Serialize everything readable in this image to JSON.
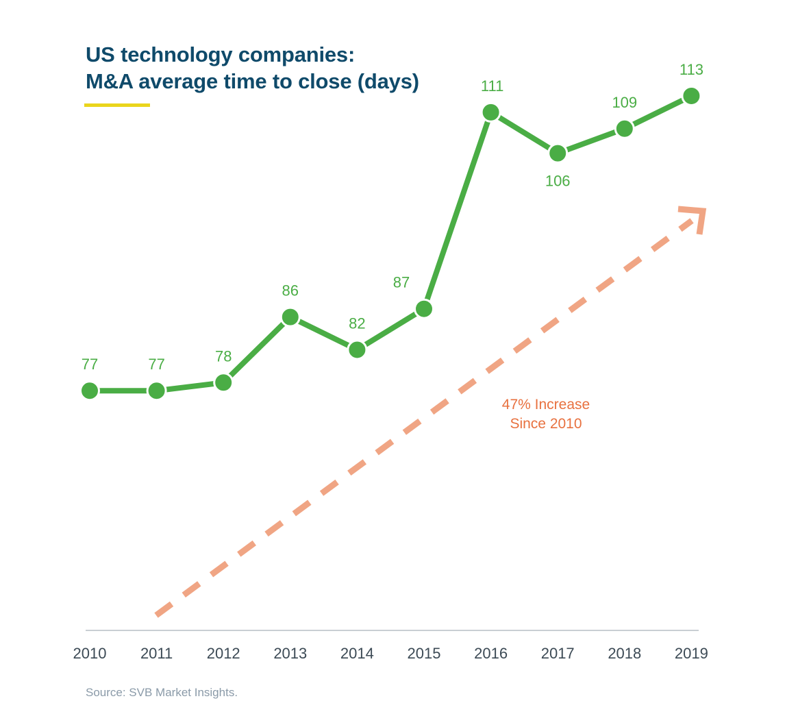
{
  "header": {
    "title_line1": "US technology companies:",
    "title_line2": "M&A average time to close (days)"
  },
  "footer": {
    "source": "Source: SVB Market Insights."
  },
  "annotation": {
    "line1": "47% Increase",
    "line2": "Since 2010"
  },
  "colors": {
    "title": "#0f4a6a",
    "accent_underline": "#ead51c",
    "series_line": "#4aad45",
    "data_label": "#4aad45",
    "trend_arrow": "#f0a584",
    "annotation_text": "#e8713f",
    "axis_line": "#c8ced3",
    "tick_label": "#3c4a55",
    "source_text": "#8a9aa8"
  },
  "chart_data": {
    "type": "line",
    "title": "US technology companies: M&A average time to close (days)",
    "x": [
      "2010",
      "2011",
      "2012",
      "2013",
      "2014",
      "2015",
      "2016",
      "2017",
      "2018",
      "2019"
    ],
    "series": [
      {
        "values": [
          77,
          77,
          78,
          86,
          82,
          87,
          111,
          106,
          109,
          113
        ],
        "data_labels": [
          "77",
          "77",
          "78",
          "86",
          "82",
          "87",
          "111",
          "106",
          "109",
          "113"
        ]
      }
    ],
    "xlabel": "",
    "ylabel": "",
    "ylim": [
      60,
      117
    ],
    "y_axis_shown": false,
    "grid": false,
    "legend": "none",
    "trend_arrow": {
      "style": "dashed",
      "label": "47% Increase Since 2010"
    }
  }
}
